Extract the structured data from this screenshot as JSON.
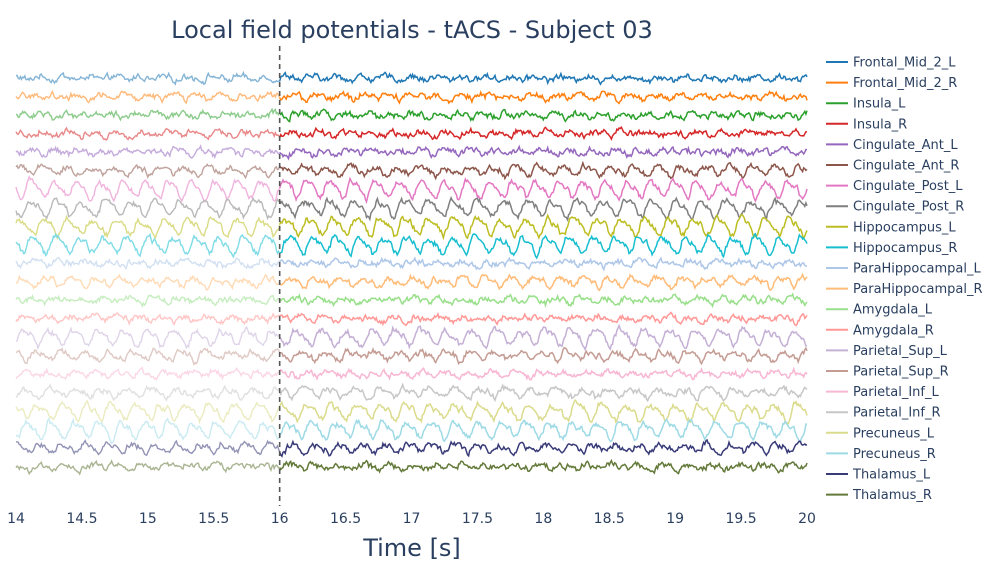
{
  "chart_data": {
    "type": "line",
    "title": "Local field potentials - tACS - Subject 03",
    "xlabel": "Time [s]",
    "ylabel": "",
    "xlim": [
      14,
      20
    ],
    "xticks": [
      "14",
      "14.5",
      "15",
      "15.5",
      "16",
      "16.5",
      "17",
      "17.5",
      "18",
      "18.5",
      "19",
      "19.5",
      "20"
    ],
    "stimulation_onset": 16,
    "grid": false,
    "legend_position": "right",
    "series": [
      {
        "name": "Frontal_Mid_2_L",
        "color": "#1f77b4",
        "oscillation": "low"
      },
      {
        "name": "Frontal_Mid_2_R",
        "color": "#ff7f0e",
        "oscillation": "low"
      },
      {
        "name": "Insula_L",
        "color": "#2ca02c",
        "oscillation": "low"
      },
      {
        "name": "Insula_R",
        "color": "#d62728",
        "oscillation": "low"
      },
      {
        "name": "Cingulate_Ant_L",
        "color": "#9467bd",
        "oscillation": "low"
      },
      {
        "name": "Cingulate_Ant_R",
        "color": "#8c564b",
        "oscillation": "medium"
      },
      {
        "name": "Cingulate_Post_L",
        "color": "#e377c2",
        "oscillation": "high"
      },
      {
        "name": "Cingulate_Post_R",
        "color": "#7f7f7f",
        "oscillation": "high"
      },
      {
        "name": "Hippocampus_L",
        "color": "#bcbd22",
        "oscillation": "high"
      },
      {
        "name": "Hippocampus_R",
        "color": "#17becf",
        "oscillation": "high"
      },
      {
        "name": "ParaHippocampal_L",
        "color": "#aec7e8",
        "oscillation": "low"
      },
      {
        "name": "ParaHippocampal_R",
        "color": "#ffbb78",
        "oscillation": "medium"
      },
      {
        "name": "Amygdala_L",
        "color": "#98df8a",
        "oscillation": "low"
      },
      {
        "name": "Amygdala_R",
        "color": "#ff9896",
        "oscillation": "low"
      },
      {
        "name": "Parietal_Sup_L",
        "color": "#c5b0d5",
        "oscillation": "high"
      },
      {
        "name": "Parietal_Sup_R",
        "color": "#c49c94",
        "oscillation": "medium"
      },
      {
        "name": "Parietal_Inf_L",
        "color": "#f7b6d2",
        "oscillation": "low"
      },
      {
        "name": "Parietal_Inf_R",
        "color": "#c7c7c7",
        "oscillation": "medium"
      },
      {
        "name": "Precuneus_L",
        "color": "#dbdb8d",
        "oscillation": "high"
      },
      {
        "name": "Precuneus_R",
        "color": "#9edae5",
        "oscillation": "high"
      },
      {
        "name": "Thalamus_L",
        "color": "#393b79",
        "oscillation": "medium"
      },
      {
        "name": "Thalamus_R",
        "color": "#637939",
        "oscillation": "low"
      }
    ]
  }
}
